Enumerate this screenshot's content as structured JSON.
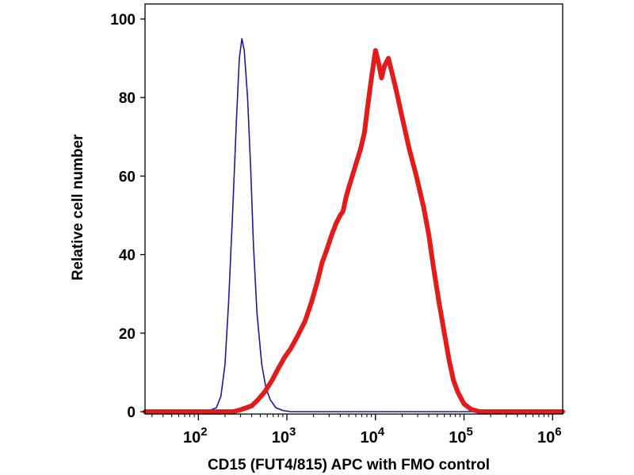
{
  "chart_data": {
    "type": "line",
    "title": "",
    "xlabel": "CD15 (FUT4/815) APC with FMO control",
    "ylabel": "Relative cell number",
    "x_scale": "log",
    "xlim": [
      25,
      1300000
    ],
    "ylim": [
      0,
      100
    ],
    "x_ticks": [
      {
        "value": 100,
        "base": "10",
        "exp": "2"
      },
      {
        "value": 1000,
        "base": "10",
        "exp": "3"
      },
      {
        "value": 10000,
        "base": "10",
        "exp": "4"
      },
      {
        "value": 100000,
        "base": "10",
        "exp": "5"
      },
      {
        "value": 1000000,
        "base": "10",
        "exp": "6"
      }
    ],
    "y_ticks": [
      0,
      20,
      40,
      60,
      80,
      100
    ],
    "grid": false,
    "legend": "none",
    "series": [
      {
        "color": "#1a1aa0",
        "line_width": 1.6,
        "points": [
          [
            25,
            0
          ],
          [
            100,
            0
          ],
          [
            130,
            0.2
          ],
          [
            160,
            1
          ],
          [
            180,
            4
          ],
          [
            200,
            12
          ],
          [
            220,
            28
          ],
          [
            245,
            52
          ],
          [
            270,
            75
          ],
          [
            290,
            90
          ],
          [
            310,
            95
          ],
          [
            330,
            92
          ],
          [
            360,
            80
          ],
          [
            390,
            62
          ],
          [
            420,
            42
          ],
          [
            460,
            25
          ],
          [
            520,
            12
          ],
          [
            580,
            6
          ],
          [
            650,
            3
          ],
          [
            750,
            1
          ],
          [
            900,
            0.3
          ],
          [
            1100,
            0
          ],
          [
            1300000,
            0
          ]
        ]
      },
      {
        "color": "#e31b1b",
        "line_width": 6,
        "points": [
          [
            25,
            0
          ],
          [
            250,
            0
          ],
          [
            300,
            0.5
          ],
          [
            350,
            1
          ],
          [
            400,
            1.5
          ],
          [
            470,
            3
          ],
          [
            560,
            5
          ],
          [
            680,
            8
          ],
          [
            800,
            11
          ],
          [
            950,
            14
          ],
          [
            1100,
            16
          ],
          [
            1300,
            19
          ],
          [
            1600,
            23
          ],
          [
            1900,
            28
          ],
          [
            2200,
            33
          ],
          [
            2500,
            38
          ],
          [
            2800,
            41
          ],
          [
            3200,
            45
          ],
          [
            3600,
            48
          ],
          [
            4000,
            50
          ],
          [
            4300,
            51
          ],
          [
            4700,
            55
          ],
          [
            5300,
            59
          ],
          [
            6000,
            63
          ],
          [
            6800,
            67
          ],
          [
            7500,
            71
          ],
          [
            8200,
            78
          ],
          [
            9000,
            85
          ],
          [
            10000,
            92
          ],
          [
            10800,
            89
          ],
          [
            11700,
            85
          ],
          [
            12600,
            88
          ],
          [
            14000,
            90
          ],
          [
            15500,
            86
          ],
          [
            17500,
            81
          ],
          [
            20000,
            75
          ],
          [
            24000,
            67
          ],
          [
            29000,
            60
          ],
          [
            35000,
            52
          ],
          [
            40000,
            45
          ],
          [
            45000,
            37
          ],
          [
            52000,
            28
          ],
          [
            60000,
            20
          ],
          [
            68000,
            13
          ],
          [
            76000,
            8
          ],
          [
            85000,
            5
          ],
          [
            100000,
            2
          ],
          [
            120000,
            0.6
          ],
          [
            150000,
            0
          ],
          [
            1300000,
            0
          ]
        ]
      }
    ]
  }
}
